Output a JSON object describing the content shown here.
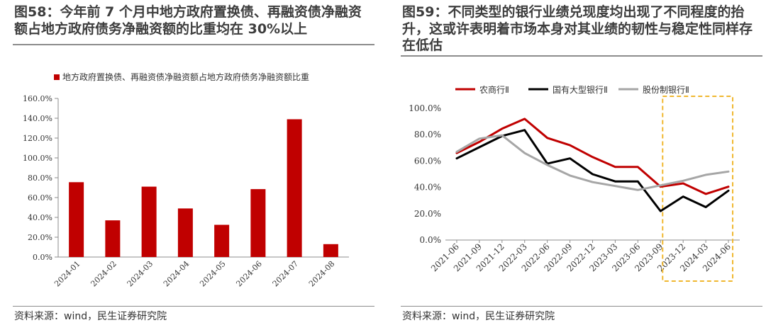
{
  "left": {
    "title": "图58：今年前 7 个月中地方政府置换债、再融资债净融资额占地方政府债务净融资额的比重均在 30%以上",
    "source": "资料来源：wind，民生证券研究院"
  },
  "right": {
    "title": "图59：不同类型的银行业绩兑现度均出现了不同程度的抬升，这或许表明着市场本身对其业绩的韧性与稳定性同样存在低估",
    "source": "资料来源：wind，民生证券研究院"
  },
  "colors": {
    "bar": "#c00000",
    "line1": "#c00000",
    "line2": "#000000",
    "line3": "#a6a6a6",
    "highlight": "#f0b72f"
  },
  "chart_data": [
    {
      "type": "bar",
      "title": "",
      "xlabel": "",
      "ylabel": "",
      "ylim": [
        0,
        160
      ],
      "yticks": [
        "0.0%",
        "20.0%",
        "40.0%",
        "60.0%",
        "80.0%",
        "100.0%",
        "120.0%",
        "140.0%",
        "160.0%"
      ],
      "categories": [
        "2024-01",
        "2024-02",
        "2024-03",
        "2024-04",
        "2024-05",
        "2024-06",
        "2024-07",
        "2024-08"
      ],
      "series": [
        {
          "name": "地方政府置换债、再融资债净融资额占地方政府债务净融资额比重",
          "values": [
            75.5,
            37.0,
            71.0,
            49.0,
            32.5,
            68.5,
            139.0,
            13.0
          ]
        }
      ],
      "legend_position": "top-left",
      "grid": false
    },
    {
      "type": "line",
      "title": "",
      "xlabel": "",
      "ylabel": "",
      "ylim": [
        0,
        100
      ],
      "yticks": [
        "0.0%",
        "20.0%",
        "40.0%",
        "60.0%",
        "80.0%",
        "100.0%"
      ],
      "categories": [
        "2021-06",
        "2021-09",
        "2021-12",
        "2022-03",
        "2022-06",
        "2022-09",
        "2022-12",
        "2023-03",
        "2023-06",
        "2023-09",
        "2023-12",
        "2024-03",
        "2024-06"
      ],
      "series": [
        {
          "name": "农商行Ⅱ",
          "values": [
            66.0,
            74.5,
            84.5,
            92.0,
            77.5,
            72.0,
            63.0,
            55.5,
            55.5,
            40.5,
            43.0,
            35.0,
            40.5
          ]
        },
        {
          "name": "国有大型银行Ⅱ",
          "values": [
            62.0,
            70.5,
            79.0,
            83.5,
            58.0,
            62.0,
            50.0,
            44.5,
            44.5,
            22.0,
            33.0,
            25.0,
            37.5
          ]
        },
        {
          "name": "股份制银行Ⅱ",
          "values": [
            67.0,
            77.0,
            79.5,
            66.0,
            57.0,
            49.0,
            44.0,
            41.0,
            38.0,
            41.5,
            45.0,
            49.5,
            52.0
          ]
        }
      ],
      "highlight_range": [
        "2023-09",
        "2024-06"
      ],
      "legend_position": "top",
      "grid": false
    }
  ]
}
